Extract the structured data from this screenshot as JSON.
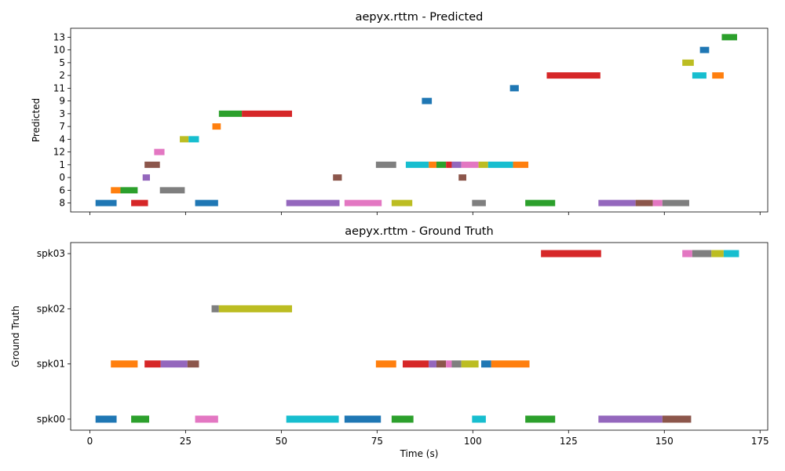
{
  "chart_data": [
    {
      "type": "timeline",
      "title": "aepyx.rttm - Predicted",
      "ylabel": "Predicted",
      "xlabel": "",
      "xlim": [
        -5,
        177
      ],
      "x_ticks": [
        0,
        25,
        50,
        75,
        100,
        125,
        150,
        175
      ],
      "show_x_tick_labels": false,
      "rows": [
        "8",
        "6",
        "0",
        "1",
        "12",
        "4",
        "7",
        "3",
        "9",
        "11",
        "2",
        "5",
        "10",
        "13"
      ],
      "segments": [
        {
          "row": "8",
          "start": 1.5,
          "end": 7.0,
          "color": "#1f77b4"
        },
        {
          "row": "8",
          "start": 10.8,
          "end": 15.2,
          "color": "#d62728"
        },
        {
          "row": "8",
          "start": 27.5,
          "end": 33.5,
          "color": "#1f77b4"
        },
        {
          "row": "8",
          "start": 51.3,
          "end": 65.2,
          "color": "#9467bd"
        },
        {
          "row": "8",
          "start": 66.5,
          "end": 76.2,
          "color": "#e377c2"
        },
        {
          "row": "8",
          "start": 78.8,
          "end": 84.2,
          "color": "#bcbd22"
        },
        {
          "row": "8",
          "start": 99.8,
          "end": 103.4,
          "color": "#7f7f7f"
        },
        {
          "row": "8",
          "start": 113.7,
          "end": 121.5,
          "color": "#2ca02c"
        },
        {
          "row": "8",
          "start": 132.8,
          "end": 142.5,
          "color": "#9467bd"
        },
        {
          "row": "8",
          "start": 142.5,
          "end": 147.0,
          "color": "#8c564b"
        },
        {
          "row": "8",
          "start": 147.0,
          "end": 149.5,
          "color": "#e377c2"
        },
        {
          "row": "8",
          "start": 149.5,
          "end": 156.5,
          "color": "#7f7f7f"
        },
        {
          "row": "6",
          "start": 5.5,
          "end": 8.0,
          "color": "#ff7f0e"
        },
        {
          "row": "6",
          "start": 8.0,
          "end": 12.5,
          "color": "#2ca02c"
        },
        {
          "row": "6",
          "start": 18.3,
          "end": 24.8,
          "color": "#7f7f7f"
        },
        {
          "row": "0",
          "start": 13.8,
          "end": 15.7,
          "color": "#9467bd"
        },
        {
          "row": "0",
          "start": 63.5,
          "end": 65.8,
          "color": "#8c564b"
        },
        {
          "row": "0",
          "start": 96.3,
          "end": 98.3,
          "color": "#8c564b"
        },
        {
          "row": "1",
          "start": 14.3,
          "end": 18.3,
          "color": "#8c564b"
        },
        {
          "row": "1",
          "start": 74.7,
          "end": 80.0,
          "color": "#7f7f7f"
        },
        {
          "row": "1",
          "start": 82.5,
          "end": 88.5,
          "color": "#17becf"
        },
        {
          "row": "1",
          "start": 88.5,
          "end": 90.5,
          "color": "#ff7f0e"
        },
        {
          "row": "1",
          "start": 90.5,
          "end": 93.0,
          "color": "#2ca02c"
        },
        {
          "row": "1",
          "start": 93.0,
          "end": 94.5,
          "color": "#d62728"
        },
        {
          "row": "1",
          "start": 94.5,
          "end": 97.0,
          "color": "#9467bd"
        },
        {
          "row": "1",
          "start": 97.0,
          "end": 101.5,
          "color": "#e377c2"
        },
        {
          "row": "1",
          "start": 101.5,
          "end": 104.0,
          "color": "#bcbd22"
        },
        {
          "row": "1",
          "start": 104.0,
          "end": 110.5,
          "color": "#17becf"
        },
        {
          "row": "1",
          "start": 110.5,
          "end": 114.5,
          "color": "#ff7f0e"
        },
        {
          "row": "12",
          "start": 16.8,
          "end": 19.5,
          "color": "#e377c2"
        },
        {
          "row": "4",
          "start": 23.5,
          "end": 25.8,
          "color": "#bcbd22"
        },
        {
          "row": "4",
          "start": 25.8,
          "end": 28.5,
          "color": "#17becf"
        },
        {
          "row": "7",
          "start": 32.0,
          "end": 34.2,
          "color": "#ff7f0e"
        },
        {
          "row": "3",
          "start": 33.7,
          "end": 39.7,
          "color": "#2ca02c"
        },
        {
          "row": "3",
          "start": 39.7,
          "end": 52.8,
          "color": "#d62728"
        },
        {
          "row": "9",
          "start": 86.7,
          "end": 89.3,
          "color": "#1f77b4"
        },
        {
          "row": "11",
          "start": 109.7,
          "end": 112.0,
          "color": "#1f77b4"
        },
        {
          "row": "2",
          "start": 119.3,
          "end": 133.3,
          "color": "#d62728"
        },
        {
          "row": "2",
          "start": 157.3,
          "end": 161.0,
          "color": "#17becf"
        },
        {
          "row": "2",
          "start": 162.5,
          "end": 165.5,
          "color": "#ff7f0e"
        },
        {
          "row": "5",
          "start": 154.7,
          "end": 157.7,
          "color": "#bcbd22"
        },
        {
          "row": "10",
          "start": 159.3,
          "end": 161.7,
          "color": "#1f77b4"
        },
        {
          "row": "13",
          "start": 165.0,
          "end": 169.0,
          "color": "#2ca02c"
        }
      ]
    },
    {
      "type": "timeline",
      "title": "aepyx.rttm - Ground Truth",
      "ylabel": "Ground Truth",
      "xlabel": "Time (s)",
      "xlim": [
        -5,
        177
      ],
      "x_ticks": [
        0,
        25,
        50,
        75,
        100,
        125,
        150,
        175
      ],
      "show_x_tick_labels": true,
      "rows": [
        "spk00",
        "spk01",
        "spk02",
        "spk03"
      ],
      "segments": [
        {
          "row": "spk00",
          "start": 1.5,
          "end": 7.0,
          "color": "#1f77b4"
        },
        {
          "row": "spk00",
          "start": 10.8,
          "end": 15.5,
          "color": "#2ca02c"
        },
        {
          "row": "spk00",
          "start": 27.5,
          "end": 33.5,
          "color": "#e377c2"
        },
        {
          "row": "spk00",
          "start": 51.3,
          "end": 65.0,
          "color": "#17becf"
        },
        {
          "row": "spk00",
          "start": 66.5,
          "end": 76.0,
          "color": "#1f77b4"
        },
        {
          "row": "spk00",
          "start": 78.8,
          "end": 84.5,
          "color": "#2ca02c"
        },
        {
          "row": "spk00",
          "start": 99.8,
          "end": 103.4,
          "color": "#17becf"
        },
        {
          "row": "spk00",
          "start": 113.7,
          "end": 121.5,
          "color": "#2ca02c"
        },
        {
          "row": "spk00",
          "start": 132.8,
          "end": 149.5,
          "color": "#9467bd"
        },
        {
          "row": "spk00",
          "start": 149.5,
          "end": 157.0,
          "color": "#8c564b"
        },
        {
          "row": "spk01",
          "start": 5.5,
          "end": 12.5,
          "color": "#ff7f0e"
        },
        {
          "row": "spk01",
          "start": 14.3,
          "end": 18.5,
          "color": "#d62728"
        },
        {
          "row": "spk01",
          "start": 18.5,
          "end": 25.5,
          "color": "#9467bd"
        },
        {
          "row": "spk01",
          "start": 25.5,
          "end": 28.5,
          "color": "#8c564b"
        },
        {
          "row": "spk01",
          "start": 74.7,
          "end": 80.0,
          "color": "#ff7f0e"
        },
        {
          "row": "spk01",
          "start": 81.7,
          "end": 88.5,
          "color": "#d62728"
        },
        {
          "row": "spk01",
          "start": 88.5,
          "end": 90.5,
          "color": "#9467bd"
        },
        {
          "row": "spk01",
          "start": 90.5,
          "end": 93.0,
          "color": "#8c564b"
        },
        {
          "row": "spk01",
          "start": 93.0,
          "end": 94.5,
          "color": "#e377c2"
        },
        {
          "row": "spk01",
          "start": 94.5,
          "end": 97.0,
          "color": "#7f7f7f"
        },
        {
          "row": "spk01",
          "start": 97.0,
          "end": 101.5,
          "color": "#bcbd22"
        },
        {
          "row": "spk01",
          "start": 102.2,
          "end": 104.8,
          "color": "#1f77b4"
        },
        {
          "row": "spk01",
          "start": 104.8,
          "end": 114.8,
          "color": "#ff7f0e"
        },
        {
          "row": "spk02",
          "start": 31.8,
          "end": 33.7,
          "color": "#7f7f7f"
        },
        {
          "row": "spk02",
          "start": 33.7,
          "end": 52.8,
          "color": "#bcbd22"
        },
        {
          "row": "spk03",
          "start": 117.8,
          "end": 133.5,
          "color": "#d62728"
        },
        {
          "row": "spk03",
          "start": 154.7,
          "end": 157.3,
          "color": "#e377c2"
        },
        {
          "row": "spk03",
          "start": 157.3,
          "end": 162.3,
          "color": "#7f7f7f"
        },
        {
          "row": "spk03",
          "start": 162.3,
          "end": 165.5,
          "color": "#bcbd22"
        },
        {
          "row": "spk03",
          "start": 165.5,
          "end": 169.5,
          "color": "#17becf"
        }
      ]
    }
  ]
}
